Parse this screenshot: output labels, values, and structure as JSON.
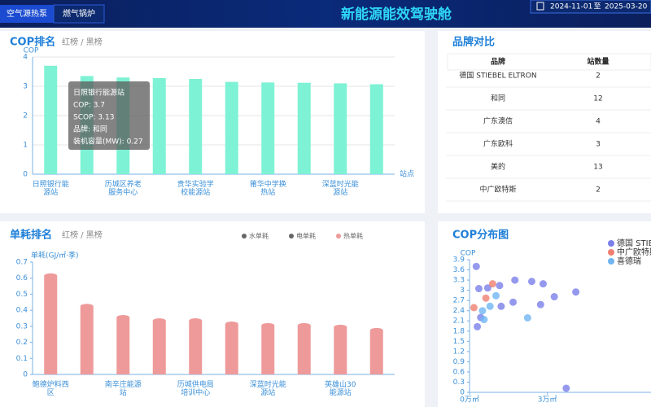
{
  "header": {
    "tabs": [
      "空气源热泵",
      "燃气锅炉"
    ],
    "title": "新能源能效驾驶舱",
    "date_start": "2024-11-01",
    "date_sep": "至",
    "date_end": "2025-03-20"
  },
  "brand_table": {
    "title": "品牌对比",
    "columns": [
      "品牌",
      "站数量"
    ],
    "rows": [
      [
        "德国 STIEBEL ELTRON",
        "2"
      ],
      [
        "和同",
        "12"
      ],
      [
        "广东澳信",
        "4"
      ],
      [
        "广东欧科",
        "3"
      ],
      [
        "美的",
        "13"
      ],
      [
        "中广欧特斯",
        "2"
      ]
    ]
  },
  "chart_data": [
    {
      "type": "bar",
      "title": "COP排名",
      "subtitle": "红榜 / 黑榜",
      "y_label": "COP",
      "x_label": "站点",
      "categories": [
        "日照银行能源站",
        null,
        "历城区养老服务中心",
        null,
        "贵华实验学校能源站",
        null,
        "莆华中学换热站",
        null,
        "深蓝时光能源站",
        null
      ],
      "values": [
        3.7,
        3.35,
        3.3,
        3.28,
        3.25,
        3.15,
        3.13,
        3.12,
        3.1,
        3.07
      ],
      "color": "#7ef2d4",
      "ylim": [
        0,
        4
      ],
      "yticks": [
        0,
        1,
        2,
        3,
        4
      ],
      "grid": true,
      "tooltip": [
        "日照银行能源站",
        "COP: 3.7",
        "SCOP: 3.13",
        "品牌: 和同",
        "装机容量(MW): 0.27"
      ]
    },
    {
      "type": "bar",
      "title": "单耗排名",
      "subtitle": "红榜 / 黑榜",
      "y_label": "单耗(GJ/㎡·季)",
      "categories": [
        "鲍德炉料西区",
        null,
        "南辛庄能源站",
        null,
        "历城供电局培训中心",
        null,
        "深蓝时光能源站",
        null,
        "英雄山30能源站",
        null
      ],
      "series": [
        {
          "name": "水单耗",
          "color": "#666666",
          "values": [
            null,
            null,
            null,
            null,
            null,
            null,
            null,
            null,
            null,
            null
          ]
        },
        {
          "name": "电单耗",
          "color": "#666666",
          "values": [
            null,
            null,
            null,
            null,
            null,
            null,
            null,
            null,
            null,
            null
          ]
        },
        {
          "name": "热单耗",
          "color": "#ee9a9a",
          "values": [
            0.63,
            0.44,
            0.37,
            0.35,
            0.35,
            0.33,
            0.32,
            0.32,
            0.31,
            0.29
          ]
        }
      ],
      "ylim": [
        0,
        0.7
      ],
      "yticks": [
        0,
        0.1,
        0.2,
        0.3,
        0.4,
        0.5,
        0.6,
        0.7
      ],
      "grid": false
    },
    {
      "type": "scatter",
      "title": "COP分布图",
      "y_label": "COP",
      "xlim": [
        0,
        7
      ],
      "xticks": [
        {
          "value": 0,
          "label": "0万㎡"
        },
        {
          "value": 3,
          "label": "3万㎡"
        }
      ],
      "ylim": [
        0,
        3.9
      ],
      "yticks": [
        0,
        0.3,
        0.6,
        0.9,
        1.2,
        1.5,
        1.8,
        2.1,
        2.4,
        2.7,
        3,
        3.3,
        3.6,
        3.9
      ],
      "series": [
        {
          "name": "德国 STIEBEL ELTRON",
          "color": "#7b7fe8",
          "x": [
            0.26,
            0.36,
            0.7,
            1.16,
            1.75,
            2.4,
            2.84,
            3.27,
            4.1,
            2.74,
            0.43,
            0.3,
            1.22,
            1.68,
            3.73
          ],
          "values": [
            3.7,
            3.05,
            3.07,
            3.14,
            3.3,
            3.26,
            3.19,
            2.81,
            2.95,
            2.58,
            2.2,
            1.93,
            2.53,
            2.65,
            0.12
          ]
        },
        {
          "name": "中广欧特斯",
          "color": "#ef7f72",
          "x": [
            0.17,
            0.63,
            0.89
          ],
          "values": [
            2.49,
            2.77,
            3.19
          ]
        },
        {
          "name": "喜德瑞",
          "color": "#6fb5f2",
          "x": [
            0.5,
            0.79,
            2.24,
            1.02,
            0.56
          ],
          "values": [
            2.4,
            2.53,
            2.19,
            2.84,
            2.14
          ]
        }
      ]
    }
  ]
}
